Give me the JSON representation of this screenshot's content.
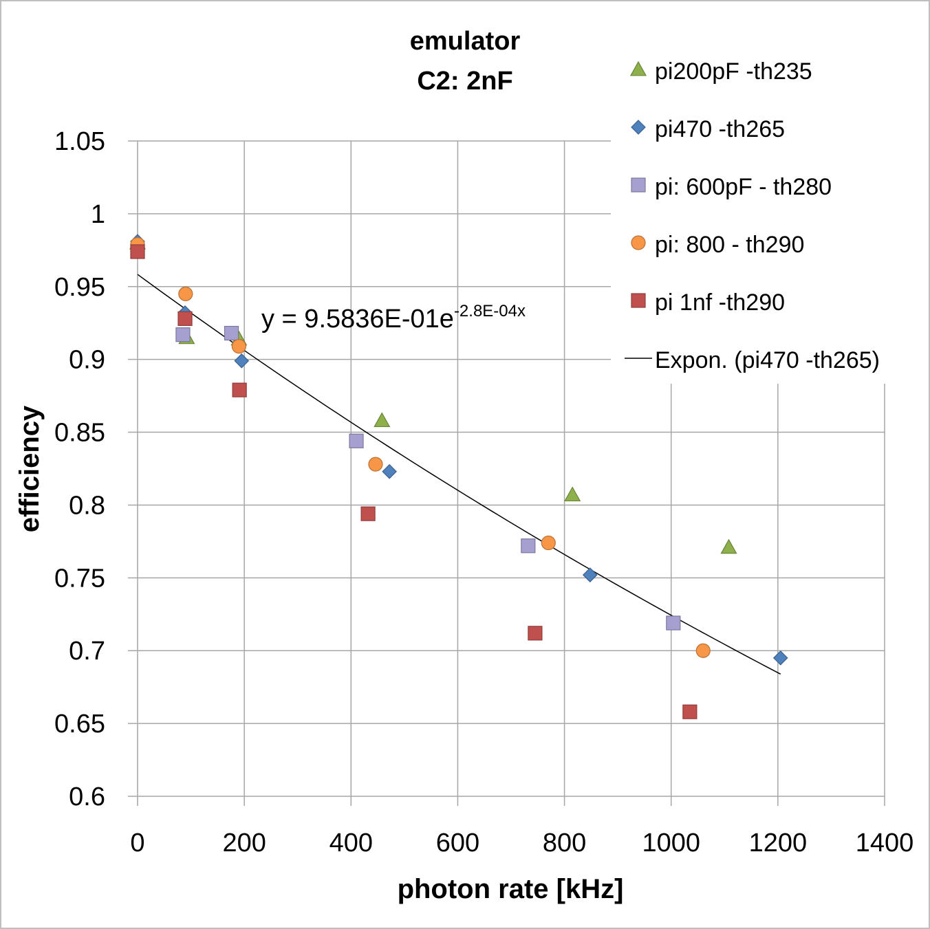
{
  "chart_data": {
    "type": "scatter",
    "title": [
      "emulator",
      "C2: 2nF"
    ],
    "xlabel": "photon rate [kHz]",
    "ylabel": "efficiency",
    "xlim": [
      0,
      1400
    ],
    "ylim": [
      0.6,
      1.05
    ],
    "x_ticks": [
      0,
      200,
      400,
      600,
      800,
      1000,
      1200,
      1400
    ],
    "y_ticks": [
      0.6,
      0.65,
      0.7,
      0.75,
      0.8,
      0.85,
      0.9,
      0.95,
      1,
      1.05
    ],
    "y_tick_labels": [
      "0.6",
      "0.65",
      "0.7",
      "0.75",
      "0.8",
      "0.85",
      "0.9",
      "0.95",
      "1",
      "1.05"
    ],
    "x_tick_labels": [
      "0",
      "200",
      "400",
      "600",
      "800",
      "1000",
      "1200",
      "1400"
    ],
    "grid": true,
    "legend_position": "right",
    "series": [
      {
        "name": "pi200pF -th235",
        "marker": "triangle",
        "color": "#8DB04A",
        "points": [
          {
            "x": 0,
            "y": 0.98
          },
          {
            "x": 92,
            "y": 0.915
          },
          {
            "x": 190,
            "y": 0.914
          },
          {
            "x": 458,
            "y": 0.858
          },
          {
            "x": 815,
            "y": 0.807
          },
          {
            "x": 1108,
            "y": 0.771
          }
        ]
      },
      {
        "name": "pi470 -th265",
        "marker": "diamond",
        "color": "#4F81BD",
        "points": [
          {
            "x": 0,
            "y": 0.981
          },
          {
            "x": 89,
            "y": 0.932
          },
          {
            "x": 195,
            "y": 0.899
          },
          {
            "x": 472,
            "y": 0.823
          },
          {
            "x": 848,
            "y": 0.752
          },
          {
            "x": 1205,
            "y": 0.695
          }
        ]
      },
      {
        "name": "pi: 600pF - th280",
        "marker": "square",
        "color": "#A5A0CF",
        "points": [
          {
            "x": 85,
            "y": 0.917
          },
          {
            "x": 176,
            "y": 0.918
          },
          {
            "x": 410,
            "y": 0.844
          },
          {
            "x": 732,
            "y": 0.772
          },
          {
            "x": 1004,
            "y": 0.719
          }
        ]
      },
      {
        "name": "pi: 800 - th290",
        "marker": "circle",
        "color": "#F79646",
        "points": [
          {
            "x": 0,
            "y": 0.979
          },
          {
            "x": 90,
            "y": 0.945
          },
          {
            "x": 190,
            "y": 0.909
          },
          {
            "x": 446,
            "y": 0.828
          },
          {
            "x": 770,
            "y": 0.774
          },
          {
            "x": 1060,
            "y": 0.7
          }
        ]
      },
      {
        "name": "pi 1nf -th290",
        "marker": "square",
        "color": "#C0504D",
        "points": [
          {
            "x": 0,
            "y": 0.974
          },
          {
            "x": 89,
            "y": 0.928
          },
          {
            "x": 191,
            "y": 0.879
          },
          {
            "x": 432,
            "y": 0.794
          },
          {
            "x": 745,
            "y": 0.712
          },
          {
            "x": 1035,
            "y": 0.658
          }
        ]
      }
    ],
    "trendline": {
      "name": "Expon. (pi470 -th265)",
      "color": "#000000",
      "x_range": [
        0,
        1205
      ],
      "a": 0.95836,
      "b": -0.00028,
      "equation_main": "y = 9.5836E-01e",
      "equation_exponent": "-2.8E-04x"
    }
  }
}
